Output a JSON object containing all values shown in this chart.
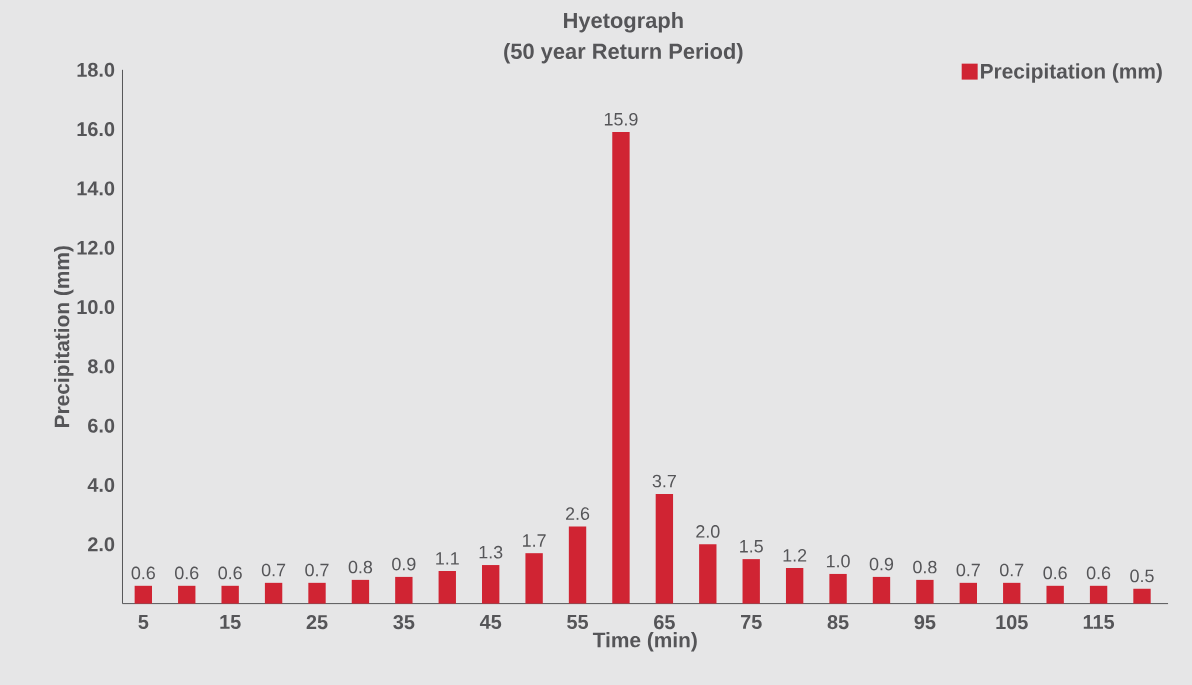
{
  "chart_data": {
    "type": "bar",
    "title": "Hyetograph",
    "subtitle": "(50 year Return Period)",
    "xlabel": "Time (min)",
    "ylabel": "Precipitation (mm)",
    "x": [
      5,
      10,
      15,
      20,
      25,
      30,
      35,
      40,
      45,
      50,
      55,
      60,
      65,
      70,
      75,
      80,
      85,
      90,
      95,
      100,
      105,
      110,
      115,
      120
    ],
    "series": [
      {
        "name": "Precipitation (mm)",
        "color": "#d02433",
        "values": [
          0.6,
          0.6,
          0.6,
          0.7,
          0.7,
          0.8,
          0.9,
          1.1,
          1.3,
          1.7,
          2.6,
          15.9,
          3.7,
          2.0,
          1.5,
          1.2,
          1.0,
          0.9,
          0.8,
          0.7,
          0.7,
          0.6,
          0.6,
          0.5
        ],
        "value_labels": [
          "0.6",
          "0.6",
          "0.6",
          "0.7",
          "0.7",
          "0.8",
          "0.9",
          "1.1",
          "1.3",
          "1.7",
          "2.6",
          "15.9",
          "3.7",
          "2.0",
          "1.5",
          "1.2",
          "1.0",
          "0.9",
          "0.8",
          "0.7",
          "0.7",
          "0.6",
          "0.6",
          "0.5"
        ]
      }
    ],
    "xlim": [
      2.6,
      123
    ],
    "xticks": [
      5,
      15,
      25,
      35,
      45,
      55,
      65,
      75,
      85,
      95,
      105,
      115
    ],
    "ylim": [
      0,
      18
    ],
    "yticks": [
      {
        "value": 2,
        "label": "2.0"
      },
      {
        "value": 4,
        "label": "4.0"
      },
      {
        "value": 6,
        "label": "6.0"
      },
      {
        "value": 8,
        "label": "8.0"
      },
      {
        "value": 10,
        "label": "10.0"
      },
      {
        "value": 12,
        "label": "12.0"
      },
      {
        "value": 14,
        "label": "14.0"
      },
      {
        "value": 16,
        "label": "16.0"
      },
      {
        "value": 18,
        "label": "18.0"
      }
    ],
    "legend": "top right",
    "grid": false
  }
}
